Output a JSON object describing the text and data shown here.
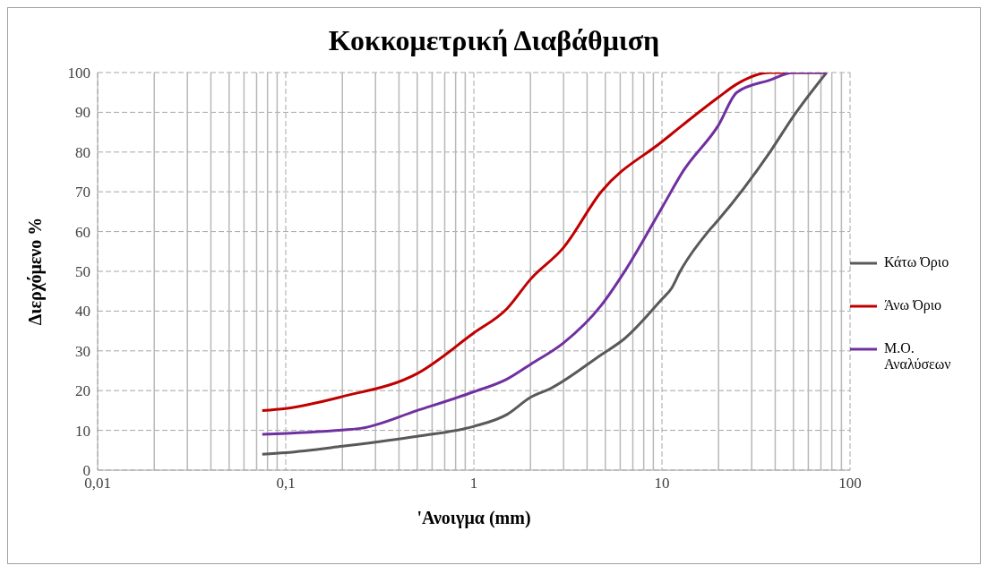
{
  "chart_data": {
    "type": "line",
    "title": "Κοκκομετρική Διαβάθμιση",
    "xlabel": "'Ανοιγμα (mm)",
    "ylabel": "Διερχόμενο %",
    "log": "x",
    "grid": true,
    "legend": "right",
    "marker": "none",
    "line_style": "solid",
    "xlim": [
      0.01,
      100
    ],
    "xticks": [
      {
        "value": 0.01,
        "label": "0,01"
      },
      {
        "value": 0.1,
        "label": "0,1"
      },
      1,
      10,
      100
    ],
    "ylim": [
      0,
      100
    ],
    "yticks": [
      0,
      10,
      20,
      30,
      40,
      50,
      60,
      70,
      80,
      90,
      100
    ],
    "series": [
      {
        "name": "Κάτω Όριο",
        "color": "#595959",
        "x": [
          0.075,
          0.1,
          0.2,
          0.5,
          1,
          1.5,
          2,
          2.55,
          4.75,
          6.3,
          10,
          11.2,
          12.5,
          17.6,
          20,
          37.5,
          50,
          75
        ],
        "values": [
          4,
          4.4,
          6,
          8.5,
          11,
          14,
          18.3,
          20.5,
          29,
          33,
          43,
          45.6,
          50,
          60,
          63,
          80,
          89,
          100
        ]
      },
      {
        "name": "Άνω Όριο",
        "color": "#c00000",
        "x": [
          0.075,
          0.1,
          0.2,
          0.5,
          1,
          1.5,
          2,
          3,
          4.75,
          10,
          20,
          25,
          37.5,
          75
        ],
        "values": [
          15,
          15.5,
          18.5,
          24.3,
          34.5,
          40.6,
          48,
          56,
          70,
          82.6,
          93.8,
          97.1,
          100,
          100
        ]
      },
      {
        "name": "Μ.Ο. Αναλύσεων",
        "color": "#7030a0",
        "x": [
          0.075,
          0.2,
          0.25,
          0.5,
          1,
          1.5,
          2,
          3,
          4.75,
          6.3,
          10,
          13,
          20,
          25,
          37.5,
          50,
          75
        ],
        "values": [
          9,
          10.1,
          10.5,
          15,
          19.7,
          22.9,
          26.6,
          32,
          41.4,
          49.8,
          66,
          75.3,
          86.8,
          95,
          98.1,
          100,
          100
        ]
      }
    ]
  }
}
